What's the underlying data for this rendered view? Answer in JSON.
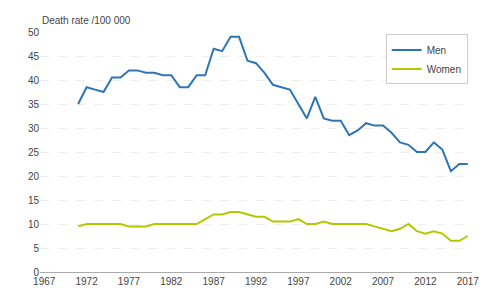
{
  "chart_data": {
    "type": "line",
    "x": [
      1971,
      1972,
      1973,
      1974,
      1975,
      1976,
      1977,
      1978,
      1979,
      1980,
      1981,
      1982,
      1983,
      1984,
      1985,
      1986,
      1987,
      1988,
      1989,
      1990,
      1991,
      1992,
      1993,
      1994,
      1995,
      1996,
      1997,
      1998,
      1999,
      2000,
      2001,
      2002,
      2003,
      2004,
      2005,
      2006,
      2007,
      2008,
      2009,
      2010,
      2011,
      2012,
      2013,
      2014,
      2015,
      2016,
      2017
    ],
    "series": [
      {
        "name": "Men",
        "color": "#2e75b6",
        "values": [
          35.0,
          38.5,
          38.0,
          37.5,
          40.5,
          40.5,
          42.0,
          42.0,
          41.5,
          41.5,
          41.0,
          41.0,
          38.5,
          38.5,
          41.0,
          41.0,
          46.5,
          46.0,
          49.0,
          49.0,
          44.0,
          43.5,
          41.5,
          39.0,
          38.5,
          38.0,
          35.0,
          32.0,
          36.5,
          32.0,
          31.5,
          31.5,
          28.5,
          29.5,
          31.0,
          30.5,
          30.5,
          29.0,
          27.0,
          26.5,
          25.0,
          25.0,
          27.0,
          25.5,
          21.0,
          22.5,
          22.5
        ]
      },
      {
        "name": "Women",
        "color": "#b4c800",
        "values": [
          9.5,
          10.0,
          10.0,
          10.0,
          10.0,
          10.0,
          9.5,
          9.5,
          9.5,
          10.0,
          10.0,
          10.0,
          10.0,
          10.0,
          10.0,
          11.0,
          12.0,
          12.0,
          12.5,
          12.5,
          12.0,
          11.5,
          11.5,
          10.5,
          10.5,
          10.5,
          11.0,
          10.0,
          10.0,
          10.5,
          10.0,
          10.0,
          10.0,
          10.0,
          10.0,
          9.5,
          9.0,
          8.5,
          9.0,
          10.0,
          8.5,
          8.0,
          8.5,
          8.0,
          6.5,
          6.5,
          7.5
        ]
      }
    ],
    "ylabel": "Death rate /100 000",
    "xlim": [
      1966.5,
      2017.5
    ],
    "xticks": [
      1967,
      1972,
      1977,
      1982,
      1987,
      1992,
      1997,
      2002,
      2007,
      2012,
      2017
    ],
    "ylim": [
      0,
      50
    ],
    "yticks": [
      0,
      5,
      10,
      15,
      20,
      25,
      30,
      35,
      40,
      45,
      50
    ],
    "grid": true,
    "legend": "upper right"
  }
}
